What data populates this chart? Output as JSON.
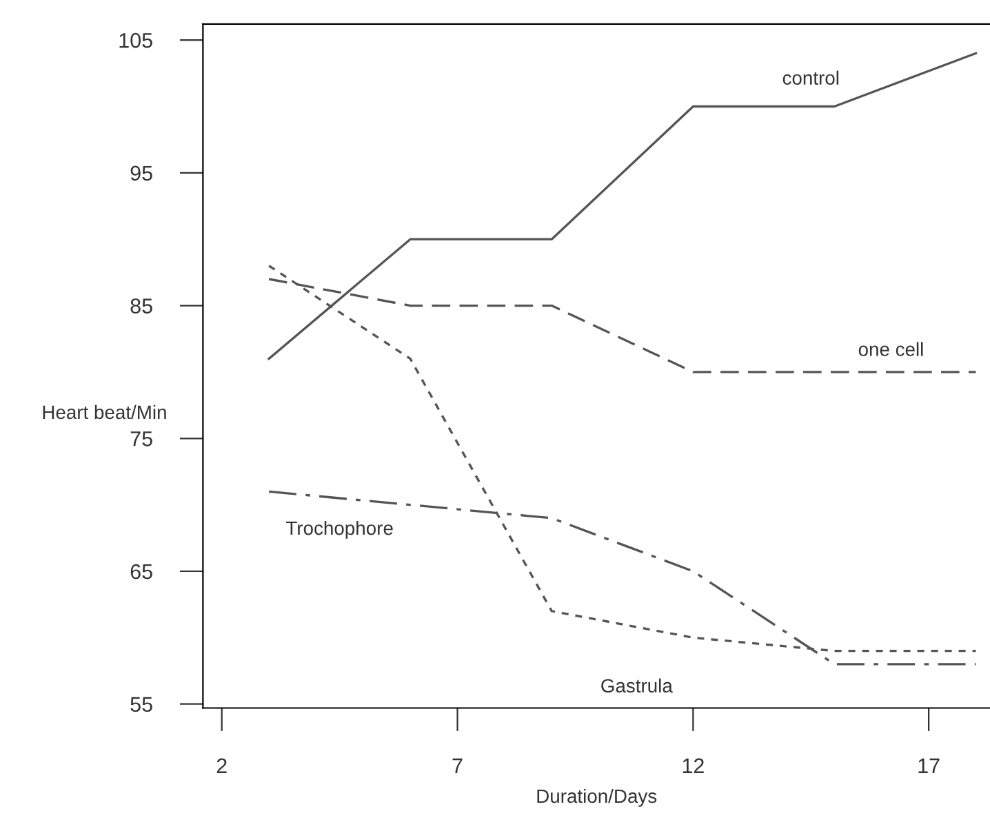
{
  "chart_data": {
    "type": "line",
    "xlabel": "Duration/Days",
    "ylabel": "Heart beat/Min",
    "x": [
      3,
      6,
      9,
      12,
      15,
      18
    ],
    "series": [
      {
        "name": "control",
        "color": "#555555",
        "line_style": "solid",
        "values": [
          81,
          90,
          90,
          100,
          100,
          104
        ]
      },
      {
        "name": "one cell",
        "color": "#555555",
        "line_style": "dashed",
        "values": [
          87,
          85,
          85,
          80,
          80,
          80
        ]
      },
      {
        "name": "Gastrula",
        "color": "#555555",
        "line_style": "dotted",
        "values": [
          88,
          81,
          62,
          60,
          59,
          59
        ]
      },
      {
        "name": "Trochophore",
        "color": "#555555",
        "line_style": "dashed",
        "values": [
          71,
          70,
          69,
          65,
          58,
          58
        ]
      }
    ],
    "xlim": [
      1.6,
      18.3
    ],
    "ylim": [
      54.7,
      106.2
    ],
    "xticks": [
      2,
      7,
      12,
      17
    ],
    "yticks": [
      55,
      65,
      75,
      85,
      95,
      105
    ],
    "grid": false,
    "legend": false,
    "marker": "none"
  }
}
